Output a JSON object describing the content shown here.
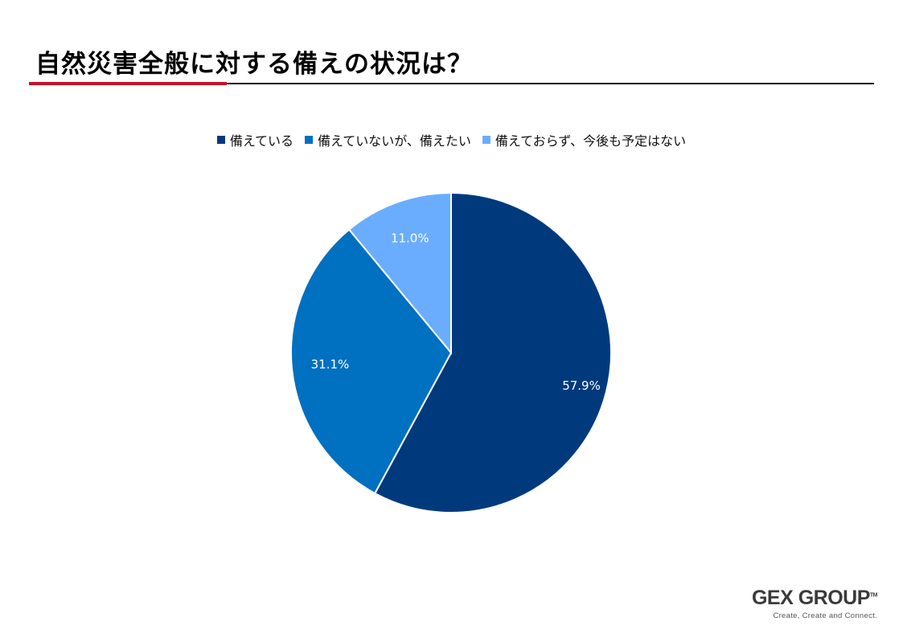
{
  "title": "自然災害全般に対する備えの状況は？",
  "colors": {
    "accent_rule": "#c8102e",
    "series": [
      "#003a7d",
      "#0070c0",
      "#6aadff"
    ]
  },
  "chart_data": {
    "type": "pie",
    "title": "",
    "legend_position": "top",
    "categories": [
      "備えている",
      "備えていないが、備えたい",
      "備えておらず、今後も予定はない"
    ],
    "values": [
      57.9,
      31.1,
      11.0
    ],
    "labels": [
      "57.9%",
      "31.1%",
      "11.0%"
    ],
    "start_angle": "12 o'clock",
    "direction": "clockwise"
  },
  "logo": {
    "name": "GEX GROUP",
    "tm": "TM",
    "tagline": "Create, Create and Connect."
  }
}
